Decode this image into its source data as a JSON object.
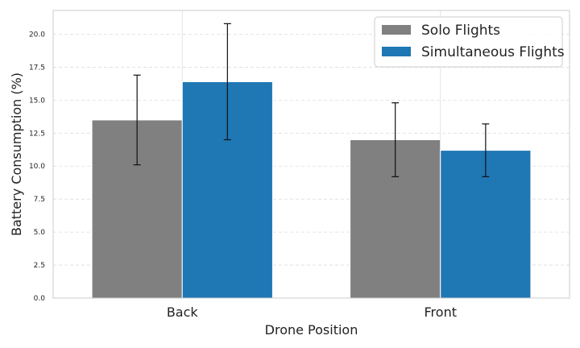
{
  "chart_data": {
    "type": "bar",
    "title": "",
    "xlabel": "Drone Position",
    "ylabel": "Battery Consumption (%)",
    "categories": [
      "Back",
      "Front"
    ],
    "ylim": [
      0,
      21.8
    ],
    "yticks": [
      0.0,
      2.5,
      5.0,
      7.5,
      10.0,
      12.5,
      15.0,
      17.5,
      20.0
    ],
    "grid": true,
    "legend_position": "top-right",
    "series": [
      {
        "name": "Solo Flights",
        "color": "#808080",
        "values": [
          13.5,
          12.0
        ],
        "errors": [
          3.4,
          2.8
        ]
      },
      {
        "name": "Simultaneous Flights",
        "color": "#1f77b4",
        "values": [
          16.4,
          11.2
        ],
        "errors": [
          4.4,
          2.0
        ]
      }
    ]
  }
}
